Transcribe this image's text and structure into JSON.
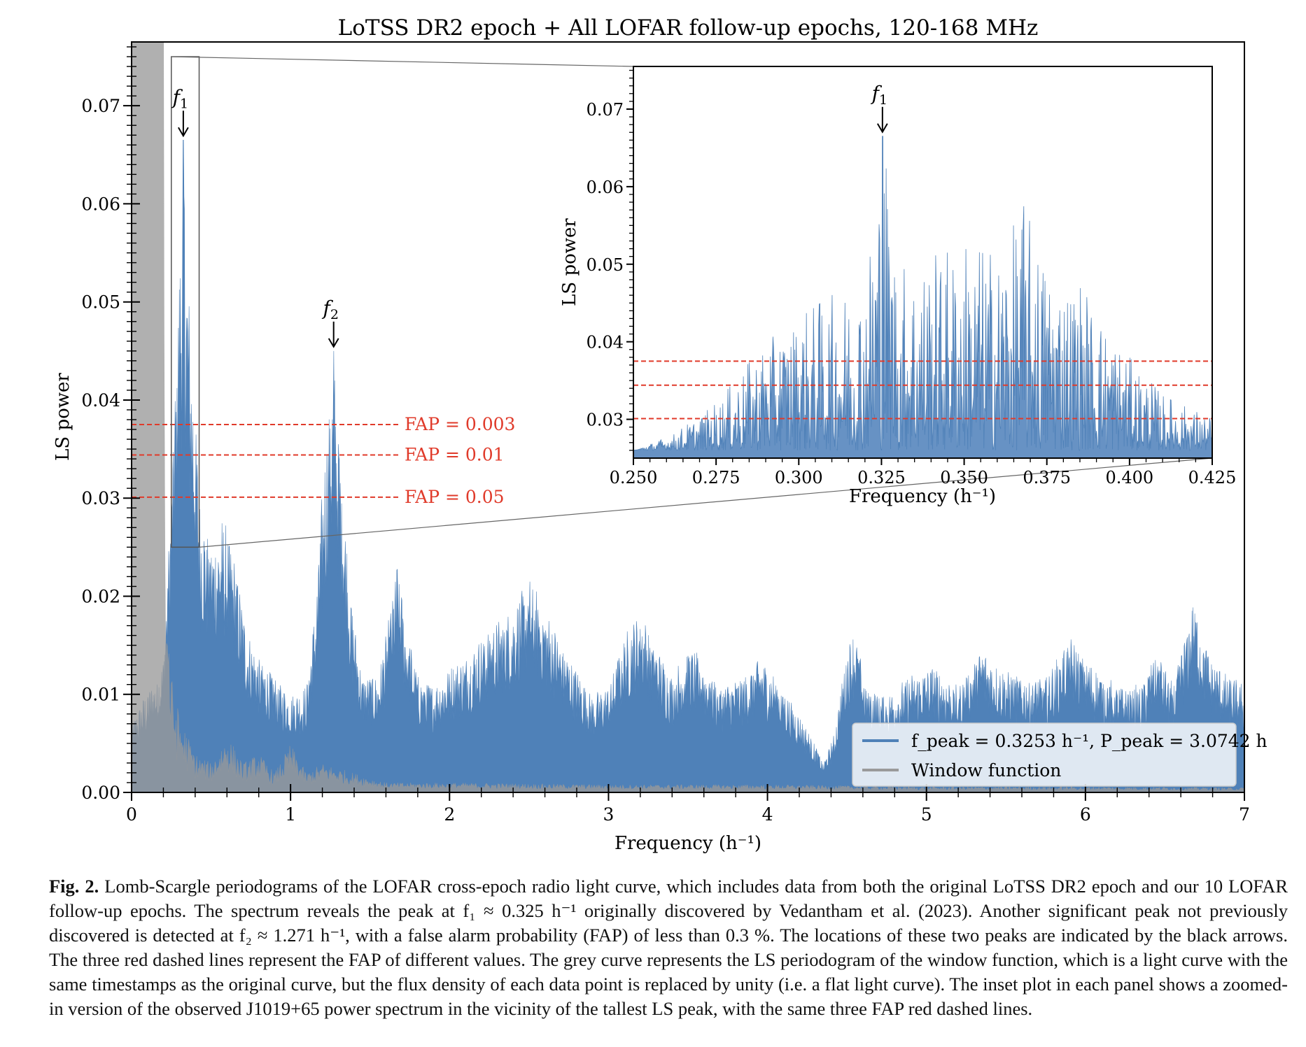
{
  "chart_data": [
    {
      "type": "bar",
      "title": "LoTSS DR2 epoch + All LOFAR follow-up epochs, 120-168 MHz",
      "xlabel": "Frequency (h⁻¹)",
      "ylabel": "LS power",
      "xlim": [
        0,
        7
      ],
      "ylim": [
        0,
        0.0765
      ],
      "x_ticks": [
        0,
        1,
        2,
        3,
        4,
        5,
        6,
        7
      ],
      "x_tick_labels": [
        "0",
        "1",
        "2",
        "3",
        "4",
        "5",
        "6",
        "7"
      ],
      "y_ticks": [
        0.0,
        0.01,
        0.02,
        0.03,
        0.04,
        0.05,
        0.06,
        0.07
      ],
      "y_tick_labels": [
        "0.00",
        "0.01",
        "0.02",
        "0.03",
        "0.04",
        "0.05",
        "0.06",
        "0.07"
      ],
      "series": [
        {
          "name": "f_peak = 0.3253 h⁻¹, P_peak = 3.0742 h",
          "color": "#4f81b8",
          "envelope": [
            [
              0,
              0.007
            ],
            [
              0.08,
              0.01
            ],
            [
              0.16,
              0.012
            ],
            [
              0.2,
              0.014
            ],
            [
              0.24,
              0.028
            ],
            [
              0.28,
              0.045
            ],
            [
              0.3253,
              0.0665
            ],
            [
              0.37,
              0.048
            ],
            [
              0.4,
              0.04
            ],
            [
              0.43,
              0.03
            ],
            [
              0.5,
              0.026
            ],
            [
              0.58,
              0.028
            ],
            [
              0.65,
              0.024
            ],
            [
              0.72,
              0.017
            ],
            [
              0.8,
              0.014
            ],
            [
              0.9,
              0.012
            ],
            [
              1.0,
              0.01
            ],
            [
              1.1,
              0.011
            ],
            [
              1.16,
              0.02
            ],
            [
              1.21,
              0.034
            ],
            [
              1.271,
              0.045
            ],
            [
              1.32,
              0.034
            ],
            [
              1.38,
              0.02
            ],
            [
              1.45,
              0.012
            ],
            [
              1.55,
              0.012
            ],
            [
              1.62,
              0.018
            ],
            [
              1.67,
              0.024
            ],
            [
              1.72,
              0.018
            ],
            [
              1.8,
              0.012
            ],
            [
              1.9,
              0.011
            ],
            [
              2.0,
              0.013
            ],
            [
              2.1,
              0.014
            ],
            [
              2.25,
              0.017
            ],
            [
              2.4,
              0.019
            ],
            [
              2.5,
              0.022
            ],
            [
              2.6,
              0.019
            ],
            [
              2.75,
              0.014
            ],
            [
              2.9,
              0.01
            ],
            [
              3.0,
              0.011
            ],
            [
              3.1,
              0.016
            ],
            [
              3.2,
              0.019
            ],
            [
              3.3,
              0.015
            ],
            [
              3.4,
              0.012
            ],
            [
              3.5,
              0.015
            ],
            [
              3.58,
              0.014
            ],
            [
              3.7,
              0.011
            ],
            [
              3.85,
              0.012
            ],
            [
              3.95,
              0.014
            ],
            [
              4.05,
              0.012
            ],
            [
              4.2,
              0.008
            ],
            [
              4.3,
              0.005
            ],
            [
              4.35,
              0.003
            ],
            [
              4.42,
              0.006
            ],
            [
              4.5,
              0.015
            ],
            [
              4.55,
              0.017
            ],
            [
              4.62,
              0.011
            ],
            [
              4.75,
              0.01
            ],
            [
              4.9,
              0.012
            ],
            [
              5.05,
              0.013
            ],
            [
              5.2,
              0.011
            ],
            [
              5.35,
              0.015
            ],
            [
              5.45,
              0.013
            ],
            [
              5.6,
              0.012
            ],
            [
              5.75,
              0.012
            ],
            [
              5.9,
              0.016
            ],
            [
              6.05,
              0.013
            ],
            [
              6.2,
              0.011
            ],
            [
              6.35,
              0.011
            ],
            [
              6.45,
              0.015
            ],
            [
              6.55,
              0.011
            ],
            [
              6.68,
              0.02
            ],
            [
              6.78,
              0.014
            ],
            [
              6.9,
              0.012
            ],
            [
              7.0,
              0.011
            ]
          ]
        },
        {
          "name": "Window function",
          "color": "#9a9a9a",
          "envelope": [
            [
              0,
              0.09
            ],
            [
              0.1,
              0.09
            ],
            [
              0.2,
              0.09
            ],
            [
              0.205,
              0.058
            ],
            [
              0.215,
              0.026
            ],
            [
              0.25,
              0.012
            ],
            [
              0.3,
              0.008
            ],
            [
              0.4,
              0.004
            ],
            [
              0.5,
              0.003
            ],
            [
              0.6,
              0.006
            ],
            [
              0.7,
              0.003
            ],
            [
              0.8,
              0.004
            ],
            [
              0.9,
              0.002
            ],
            [
              1.0,
              0.005
            ],
            [
              1.1,
              0.002
            ],
            [
              1.2,
              0.003
            ],
            [
              1.4,
              0.002
            ],
            [
              1.6,
              0.001
            ],
            [
              2.0,
              0.001
            ],
            [
              3.0,
              0.0008
            ],
            [
              4.0,
              0.0008
            ],
            [
              5.0,
              0.0006
            ],
            [
              6.0,
              0.0006
            ],
            [
              7.0,
              0.0005
            ]
          ]
        }
      ],
      "fap_lines": [
        {
          "value": 0.0375,
          "label": "FAP = 0.003"
        },
        {
          "value": 0.0344,
          "label": "FAP = 0.01"
        },
        {
          "value": 0.0301,
          "label": "FAP = 0.05"
        }
      ],
      "annotations": [
        {
          "label": "f",
          "sub": "1",
          "x": 0.3253,
          "y": 0.0665
        },
        {
          "label": "f",
          "sub": "2",
          "x": 1.271,
          "y": 0.045
        }
      ],
      "zoom_box": {
        "x": [
          0.25,
          0.425
        ],
        "y": [
          0.025,
          0.075
        ]
      },
      "legend": {
        "position": "lower-right"
      }
    },
    {
      "type": "bar",
      "title": "",
      "xlabel": "Frequency (h⁻¹)",
      "ylabel": "LS power",
      "xlim": [
        0.25,
        0.425
      ],
      "ylim": [
        0.025,
        0.0755
      ],
      "x_ticks": [
        0.25,
        0.275,
        0.3,
        0.325,
        0.35,
        0.375,
        0.4,
        0.425
      ],
      "x_tick_labels": [
        "0.250",
        "0.275",
        "0.300",
        "0.325",
        "0.350",
        "0.375",
        "0.400",
        "0.425"
      ],
      "y_ticks": [
        0.03,
        0.04,
        0.05,
        0.06,
        0.07
      ],
      "y_tick_labels": [
        "0.03",
        "0.04",
        "0.05",
        "0.06",
        "0.07"
      ],
      "envelope": [
        [
          0.25,
          0.026
        ],
        [
          0.262,
          0.028
        ],
        [
          0.275,
          0.032
        ],
        [
          0.29,
          0.04
        ],
        [
          0.3,
          0.043
        ],
        [
          0.31,
          0.046
        ],
        [
          0.32,
          0.048
        ],
        [
          0.3253,
          0.0665
        ],
        [
          0.33,
          0.049
        ],
        [
          0.34,
          0.051
        ],
        [
          0.35,
          0.052
        ],
        [
          0.36,
          0.051
        ],
        [
          0.368,
          0.0575
        ],
        [
          0.375,
          0.05
        ],
        [
          0.385,
          0.047
        ],
        [
          0.39,
          0.044
        ],
        [
          0.4,
          0.038
        ],
        [
          0.41,
          0.033
        ],
        [
          0.425,
          0.03
        ]
      ],
      "fap_lines": [
        0.0375,
        0.0344,
        0.0301
      ],
      "annotations": [
        {
          "label": "f",
          "sub": "1",
          "x": 0.3253,
          "y": 0.0665
        }
      ]
    }
  ],
  "caption": {
    "label": "Fig. 2.",
    "lines": [
      "Lomb-Scargle periodograms of the LOFAR cross-epoch radio light curve, which includes data from both the original LoTSS DR2 epoch",
      "and our 10 LOFAR follow-up epochs. The spectrum reveals the peak at f₁ ≈ 0.325 h⁻¹ originally discovered by Vedantham et al. (2023). Another",
      "significant peak not previously discovered is detected at f₂ ≈ 1.271 h⁻¹, with a false alarm probability (FAP) of less than 0.3 %. The locations of",
      "these two peaks are indicated by the black arrows. The three red dashed lines represent the FAP of different values. The grey curve represents",
      "the LS periodogram of the window function, which is a light curve with the same timestamps as the original curve, but the flux density of each",
      "data point is replaced by unity (i.e. a flat light curve). The inset plot in each panel shows a zoomed-in version of the observed J1019+65 power",
      "spectrum in the vicinity of the tallest LS peak, with the same three FAP red dashed lines."
    ]
  }
}
